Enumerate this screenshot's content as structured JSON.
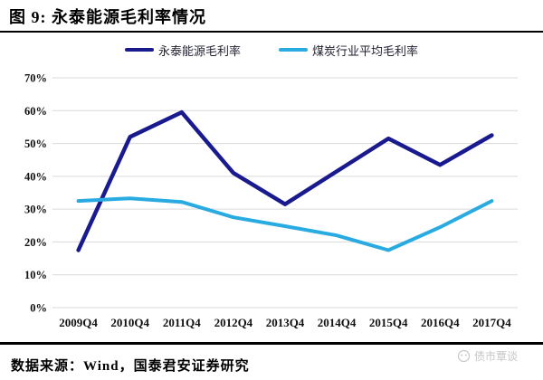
{
  "header": {
    "title": "图 9: 永泰能源毛利率情况"
  },
  "chart_data": {
    "type": "line",
    "title": "永泰能源毛利率情况",
    "categories": [
      "2009Q4",
      "2010Q4",
      "2011Q4",
      "2012Q4",
      "2013Q4",
      "2014Q4",
      "2015Q4",
      "2016Q4",
      "2017Q4"
    ],
    "series": [
      {
        "name": "永泰能源毛利率",
        "color": "#1a1a8f",
        "values": [
          17.5,
          52.0,
          59.5,
          41.0,
          31.5,
          41.5,
          51.5,
          43.5,
          52.5
        ]
      },
      {
        "name": "煤炭行业平均毛利率",
        "color": "#29abe2",
        "values": [
          32.5,
          33.3,
          32.2,
          27.5,
          24.8,
          22.0,
          17.5,
          24.5,
          32.5
        ]
      }
    ],
    "ylim": [
      0,
      70
    ],
    "yticks": [
      0,
      10,
      20,
      30,
      40,
      50,
      60,
      70
    ],
    "ytick_labels": [
      "0%",
      "10%",
      "20%",
      "30%",
      "40%",
      "50%",
      "60%",
      "70%"
    ],
    "grid": "horizontal",
    "gridline_color": "#d9d9d9",
    "legend_position": "top"
  },
  "footer": {
    "source": "数据来源：Wind，国泰君安证券研究",
    "watermark": "债市覃谈"
  }
}
